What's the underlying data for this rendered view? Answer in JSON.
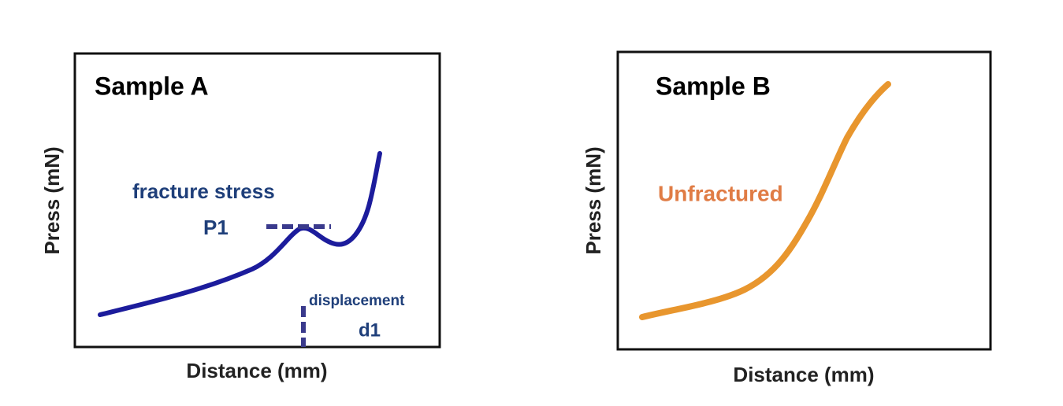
{
  "panels": [
    {
      "title": "Sample A",
      "x_label": "Distance (mm)",
      "y_label": "Press (mN)",
      "annotations": [
        "fracture stress",
        "P1",
        "displacement",
        "d1"
      ]
    },
    {
      "title": "Sample B",
      "x_label": "Distance (mm)",
      "y_label": "Press (mN)",
      "annotations": [
        "Unfractured"
      ]
    }
  ]
}
